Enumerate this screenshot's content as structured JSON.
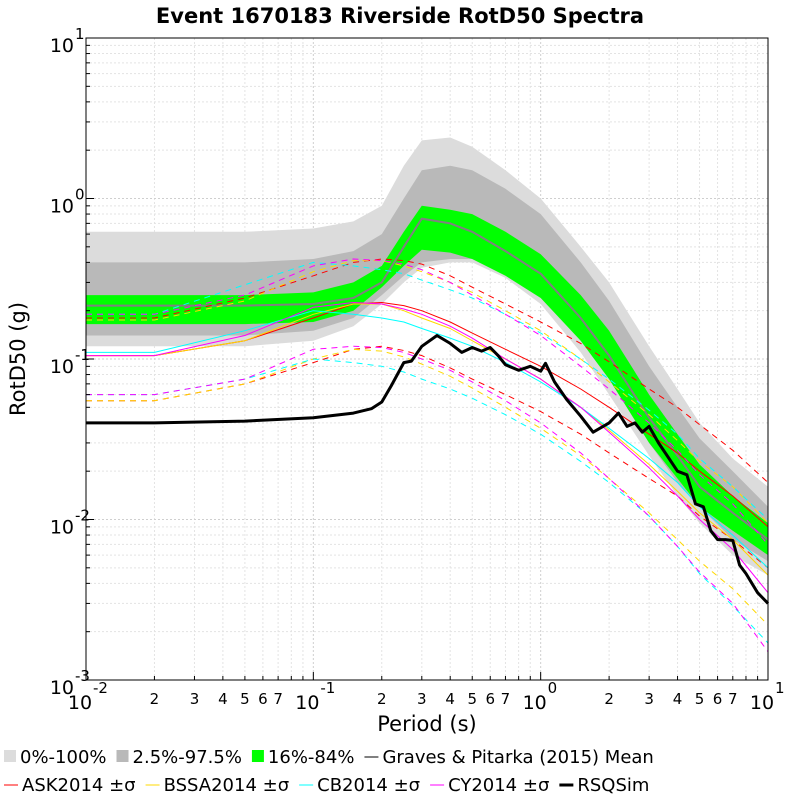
{
  "chart_data": {
    "type": "line",
    "title": "Event 1670183 Riverside RotD50 Spectra",
    "xlabel": "Period (s)",
    "ylabel": "RotD50 (g)",
    "x_scale": "log",
    "y_scale": "log",
    "xlim": [
      0.01,
      10
    ],
    "ylim": [
      0.001,
      10
    ],
    "grid": true,
    "legend_position": "bottom",
    "x_major_ticks": [
      {
        "base": "10",
        "exp": "-2"
      },
      {
        "base": "10",
        "exp": "-1"
      },
      {
        "base": "10",
        "exp": "0"
      },
      {
        "base": "10",
        "exp": "1"
      }
    ],
    "y_major_ticks": [
      {
        "base": "10",
        "exp": "-3"
      },
      {
        "base": "10",
        "exp": "-2"
      },
      {
        "base": "10",
        "exp": "-1"
      },
      {
        "base": "10",
        "exp": "0"
      },
      {
        "base": "10",
        "exp": "1"
      }
    ],
    "x_minor_labels": [
      "2",
      "3",
      "4",
      "5",
      "6",
      "7"
    ],
    "periods": [
      0.01,
      0.02,
      0.05,
      0.1,
      0.15,
      0.2,
      0.25,
      0.3,
      0.4,
      0.5,
      0.7,
      1,
      1.5,
      2,
      3,
      4,
      5,
      7,
      10
    ],
    "bands": [
      {
        "name": "0%-100%",
        "color": "#dcdcdc",
        "lower": [
          0.12,
          0.12,
          0.12,
          0.13,
          0.16,
          0.22,
          0.3,
          0.37,
          0.4,
          0.4,
          0.32,
          0.22,
          0.11,
          0.06,
          0.025,
          0.014,
          0.0095,
          0.006,
          0.0045
        ],
        "upper": [
          0.62,
          0.62,
          0.62,
          0.65,
          0.72,
          0.9,
          1.6,
          2.3,
          2.4,
          2.1,
          1.5,
          1.0,
          0.5,
          0.3,
          0.12,
          0.065,
          0.04,
          0.024,
          0.016
        ]
      },
      {
        "name": "2.5%-97.5%",
        "color": "#b9b9b9",
        "lower": [
          0.14,
          0.14,
          0.14,
          0.15,
          0.18,
          0.25,
          0.33,
          0.4,
          0.42,
          0.42,
          0.34,
          0.25,
          0.13,
          0.075,
          0.03,
          0.017,
          0.012,
          0.0075,
          0.0055
        ],
        "upper": [
          0.4,
          0.4,
          0.4,
          0.42,
          0.47,
          0.6,
          1.0,
          1.5,
          1.6,
          1.5,
          1.15,
          0.8,
          0.4,
          0.23,
          0.09,
          0.05,
          0.032,
          0.02,
          0.012
        ]
      },
      {
        "name": "16%-84%",
        "color": "#00ff00",
        "lower": [
          0.165,
          0.165,
          0.165,
          0.17,
          0.2,
          0.28,
          0.38,
          0.48,
          0.46,
          0.42,
          0.33,
          0.24,
          0.13,
          0.075,
          0.03,
          0.018,
          0.012,
          0.0085,
          0.006
        ],
        "upper": [
          0.25,
          0.25,
          0.25,
          0.26,
          0.3,
          0.38,
          0.62,
          0.9,
          0.85,
          0.8,
          0.62,
          0.45,
          0.25,
          0.15,
          0.06,
          0.034,
          0.022,
          0.014,
          0.0095
        ]
      }
    ],
    "series": [
      {
        "name": "Graves & Pitarka (2015) Mean",
        "color": "#808080",
        "width": 2,
        "dash": "",
        "values": [
          0.215,
          0.215,
          0.215,
          0.22,
          0.24,
          0.3,
          0.5,
          0.75,
          0.7,
          0.62,
          0.47,
          0.34,
          0.18,
          0.105,
          0.043,
          0.025,
          0.016,
          0.011,
          0.0075
        ]
      },
      {
        "name": "ASK2014 ±σ",
        "color": "#ff0000",
        "width": 1,
        "dash": "",
        "values": [
          0.105,
          0.105,
          0.13,
          0.18,
          0.22,
          0.225,
          0.215,
          0.2,
          0.17,
          0.145,
          0.115,
          0.09,
          0.065,
          0.05,
          0.034,
          0.026,
          0.02,
          0.014,
          0.009
        ]
      },
      {
        "name": "ASK2014 +σ",
        "color": "#ff0000",
        "width": 1,
        "dash": "6,5",
        "legend": false,
        "values": [
          0.18,
          0.18,
          0.24,
          0.33,
          0.4,
          0.42,
          0.41,
          0.39,
          0.33,
          0.28,
          0.22,
          0.17,
          0.125,
          0.096,
          0.065,
          0.05,
          0.039,
          0.027,
          0.017
        ]
      },
      {
        "name": "ASK2014 -σ",
        "color": "#ff0000",
        "width": 1,
        "dash": "6,5",
        "legend": false,
        "values": [
          0.055,
          0.055,
          0.07,
          0.095,
          0.115,
          0.12,
          0.113,
          0.105,
          0.088,
          0.075,
          0.06,
          0.047,
          0.034,
          0.026,
          0.018,
          0.014,
          0.0105,
          0.0075,
          0.005
        ]
      },
      {
        "name": "BSSA2014 ±σ",
        "color": "#ffd800",
        "width": 1,
        "dash": "",
        "values": [
          0.105,
          0.105,
          0.13,
          0.19,
          0.22,
          0.22,
          0.2,
          0.18,
          0.155,
          0.13,
          0.1,
          0.075,
          0.05,
          0.036,
          0.022,
          0.015,
          0.011,
          0.0075,
          0.0045
        ]
      },
      {
        "name": "BSSA2014 +σ",
        "color": "#ffd800",
        "width": 1,
        "dash": "6,5",
        "legend": false,
        "values": [
          0.175,
          0.175,
          0.23,
          0.35,
          0.41,
          0.41,
          0.38,
          0.35,
          0.3,
          0.26,
          0.2,
          0.15,
          0.1,
          0.072,
          0.045,
          0.031,
          0.023,
          0.016,
          0.0095
        ]
      },
      {
        "name": "BSSA2014 -σ",
        "color": "#ffd800",
        "width": 1,
        "dash": "6,5",
        "legend": false,
        "values": [
          0.055,
          0.055,
          0.07,
          0.1,
          0.115,
          0.112,
          0.103,
          0.093,
          0.078,
          0.066,
          0.05,
          0.037,
          0.025,
          0.018,
          0.011,
          0.0075,
          0.0055,
          0.0037,
          0.0022
        ]
      },
      {
        "name": "CB2014 ±σ",
        "color": "#00ffff",
        "width": 1,
        "dash": "",
        "values": [
          0.11,
          0.11,
          0.15,
          0.2,
          0.19,
          0.18,
          0.17,
          0.155,
          0.135,
          0.12,
          0.095,
          0.072,
          0.05,
          0.037,
          0.024,
          0.017,
          0.012,
          0.008,
          0.005
        ]
      },
      {
        "name": "CB2014 +σ",
        "color": "#00ffff",
        "width": 1,
        "dash": "6,5",
        "legend": false,
        "values": [
          0.19,
          0.19,
          0.29,
          0.4,
          0.38,
          0.36,
          0.34,
          0.31,
          0.27,
          0.24,
          0.19,
          0.145,
          0.1,
          0.075,
          0.048,
          0.034,
          0.024,
          0.016,
          0.01
        ]
      },
      {
        "name": "CB2014 -σ",
        "color": "#00ffff",
        "width": 1,
        "dash": "6,5",
        "legend": false,
        "values": [
          0.06,
          0.06,
          0.075,
          0.1,
          0.095,
          0.09,
          0.083,
          0.075,
          0.065,
          0.057,
          0.045,
          0.034,
          0.023,
          0.017,
          0.0105,
          0.0068,
          0.0046,
          0.0029,
          0.0017
        ]
      },
      {
        "name": "CY2014 ±σ",
        "color": "#ff00ff",
        "width": 1,
        "dash": "",
        "values": [
          0.105,
          0.105,
          0.14,
          0.21,
          0.225,
          0.22,
          0.205,
          0.19,
          0.16,
          0.135,
          0.1,
          0.075,
          0.05,
          0.035,
          0.021,
          0.014,
          0.01,
          0.0065,
          0.0035
        ]
      },
      {
        "name": "CY2014 +σ",
        "color": "#ff00ff",
        "width": 1,
        "dash": "6,5",
        "legend": false,
        "values": [
          0.19,
          0.19,
          0.25,
          0.38,
          0.42,
          0.41,
          0.39,
          0.36,
          0.3,
          0.25,
          0.19,
          0.14,
          0.09,
          0.065,
          0.04,
          0.027,
          0.019,
          0.0125,
          0.007
        ]
      },
      {
        "name": "CY2014 -σ",
        "color": "#ff00ff",
        "width": 1,
        "dash": "6,5",
        "legend": false,
        "values": [
          0.06,
          0.06,
          0.075,
          0.115,
          0.12,
          0.118,
          0.11,
          0.1,
          0.085,
          0.072,
          0.055,
          0.04,
          0.026,
          0.018,
          0.0105,
          0.0068,
          0.0047,
          0.003,
          0.0015
        ]
      }
    ],
    "rsqsim": {
      "name": "RSQSim",
      "color": "#000000",
      "width": 3,
      "x": [
        0.01,
        0.02,
        0.05,
        0.1,
        0.15,
        0.18,
        0.2,
        0.22,
        0.25,
        0.27,
        0.3,
        0.35,
        0.4,
        0.45,
        0.5,
        0.55,
        0.6,
        0.65,
        0.7,
        0.8,
        0.9,
        1.0,
        1.05,
        1.15,
        1.3,
        1.5,
        1.7,
        2.0,
        2.2,
        2.4,
        2.6,
        2.8,
        3.0,
        3.3,
        3.6,
        4.0,
        4.4,
        4.8,
        5.2,
        5.6,
        6.0,
        6.5,
        7.0,
        7.5,
        8.0,
        9.0,
        10.0
      ],
      "values": [
        0.04,
        0.04,
        0.041,
        0.043,
        0.046,
        0.049,
        0.054,
        0.068,
        0.095,
        0.097,
        0.12,
        0.14,
        0.125,
        0.11,
        0.118,
        0.112,
        0.118,
        0.105,
        0.092,
        0.085,
        0.09,
        0.084,
        0.094,
        0.072,
        0.056,
        0.044,
        0.035,
        0.04,
        0.046,
        0.038,
        0.04,
        0.035,
        0.038,
        0.03,
        0.025,
        0.02,
        0.019,
        0.0125,
        0.012,
        0.0085,
        0.0075,
        0.0075,
        0.0074,
        0.0052,
        0.0046,
        0.0035,
        0.003
      ]
    },
    "legend": {
      "row1": [
        {
          "label": "0%-100%",
          "swatch": "box",
          "color": "#dcdcdc"
        },
        {
          "label": "2.5%-97.5%",
          "swatch": "box",
          "color": "#b9b9b9"
        },
        {
          "label": "16%-84%",
          "swatch": "box",
          "color": "#00ff00"
        },
        {
          "label": "Graves & Pitarka (2015) Mean",
          "swatch": "line",
          "color": "#808080",
          "lw": 2
        }
      ],
      "row2": [
        {
          "label": "ASK2014 ±σ",
          "swatch": "line",
          "color": "#ff0000",
          "lw": 1
        },
        {
          "label": "BSSA2014 ±σ",
          "swatch": "line",
          "color": "#ffd800",
          "lw": 1
        },
        {
          "label": "CB2014 ±σ",
          "swatch": "line",
          "color": "#00ffff",
          "lw": 1
        },
        {
          "label": "CY2014 ±σ",
          "swatch": "line",
          "color": "#ff00ff",
          "lw": 1
        },
        {
          "label": "RSQSim",
          "swatch": "line",
          "color": "#000000",
          "lw": 3
        }
      ]
    }
  }
}
